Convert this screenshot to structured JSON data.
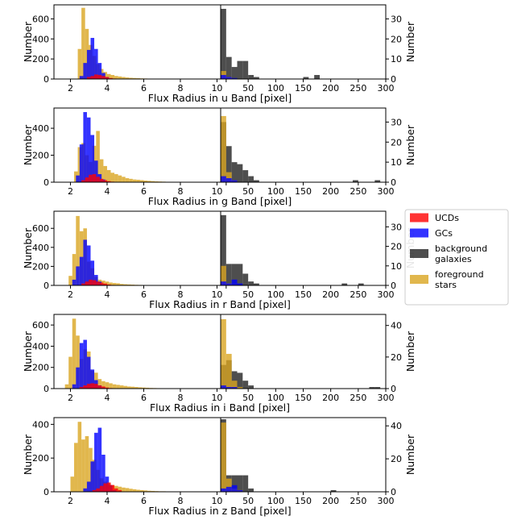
{
  "chart_data": {
    "type": "bar",
    "legend": {
      "placement": "right",
      "entries": [
        {
          "lines": [
            "UCDs"
          ],
          "color": "#ff0000"
        },
        {
          "lines": [
            "GCs"
          ],
          "color": "#0000ff"
        },
        {
          "lines": [
            "background",
            "galaxies"
          ],
          "color": "#222222"
        },
        {
          "lines": [
            "foreground",
            "stars"
          ],
          "color": "#daa520"
        }
      ]
    },
    "colors": {
      "ucds": "#ff0000",
      "gcs": "#0000ff",
      "background": "#222222",
      "foreground": "#daa520"
    },
    "grid": false,
    "panels": [
      {
        "band": "u",
        "xlabel": "Flux Radius in u Band [pixel]",
        "ylabel_left": "Number",
        "ylabel_right": "Number",
        "left": {
          "xlim": [
            1.1,
            10.2
          ],
          "xticks": [
            2,
            4,
            6,
            8,
            10
          ],
          "xticklabels": [
            "2",
            "4",
            "6",
            "8",
            "10"
          ],
          "ylim": [
            0,
            740
          ],
          "yticks": [
            0,
            200,
            400,
            600
          ],
          "bin_width": 0.2,
          "foreground": {
            "x0": 2.4,
            "values": [
              300,
              710,
              500,
              340,
              230,
              150,
              100,
              70,
              50,
              40,
              30,
              25,
              20,
              15,
              12,
              10,
              8,
              6,
              5,
              4,
              3,
              3,
              2,
              2
            ]
          },
          "gcs": {
            "x0": 2.5,
            "values": [
              30,
              160,
              290,
              410,
              300,
              160,
              60,
              20,
              5
            ]
          },
          "ucds": {
            "x0": 2.9,
            "values": [
              20,
              30,
              45,
              40,
              30,
              20,
              10,
              5
            ]
          }
        },
        "right": {
          "xlim": [
            0,
            300
          ],
          "xticks": [
            10,
            50,
            100,
            150,
            200,
            250,
            300
          ],
          "xticklabels": [
            "10",
            "50",
            "100",
            "150",
            "200",
            "250",
            "300"
          ],
          "ylim": [
            0,
            37
          ],
          "yticks": [
            0,
            10,
            20,
            30
          ],
          "bin_width": 10,
          "foreground": {
            "x0": 0,
            "values": [
              4,
              1
            ]
          },
          "background": {
            "x0": 0,
            "values": [
              35,
              11,
              6,
              9,
              9,
              2,
              1,
              0,
              0,
              0,
              0,
              0,
              0,
              0,
              0,
              1,
              0,
              2
            ]
          },
          "gcs": {
            "x0": 0,
            "values": [
              2,
              1,
              0.5
            ]
          }
        }
      },
      {
        "band": "g",
        "xlabel": "Flux Radius in g Band [pixel]",
        "ylabel_left": "Number",
        "ylabel_right": "Number",
        "left": {
          "xlim": [
            1.1,
            10.2
          ],
          "xticks": [
            2,
            4,
            6,
            8,
            10
          ],
          "xticklabels": [
            "2",
            "4",
            "6",
            "8",
            "10"
          ],
          "ylim": [
            0,
            550
          ],
          "yticks": [
            0,
            200,
            400
          ],
          "bin_width": 0.2,
          "foreground": {
            "x0": 2.2,
            "values": [
              80,
              260,
              290,
              200,
              150,
              270,
              380,
              170,
              120,
              90,
              70,
              60,
              50,
              40,
              30,
              25,
              20,
              18,
              15,
              12,
              10,
              8,
              6,
              5,
              4,
              3,
              3,
              2
            ]
          },
          "gcs": {
            "x0": 2.3,
            "values": [
              50,
              280,
              520,
              480,
              350,
              160,
              60,
              20,
              5
            ]
          },
          "ucds": {
            "x0": 2.6,
            "values": [
              15,
              35,
              55,
              60,
              40,
              25,
              15,
              8,
              4
            ]
          }
        },
        "right": {
          "xlim": [
            0,
            300
          ],
          "xticks": [
            10,
            50,
            100,
            150,
            200,
            250,
            300
          ],
          "xticklabels": [
            "10",
            "50",
            "100",
            "150",
            "200",
            "250",
            "300"
          ],
          "ylim": [
            0,
            37
          ],
          "yticks": [
            0,
            10,
            20,
            30
          ],
          "bin_width": 10,
          "foreground": {
            "x0": 0,
            "values": [
              33,
              5,
              1
            ]
          },
          "background": {
            "x0": 0,
            "values": [
              30,
              18,
              10,
              9,
              6,
              3,
              1,
              0,
              0,
              0,
              0,
              0,
              0,
              0,
              0,
              0,
              0,
              0,
              0,
              0,
              0,
              0,
              0,
              0,
              1,
              0,
              0,
              0,
              1
            ]
          },
          "gcs": {
            "x0": 0,
            "values": [
              3,
              2,
              1
            ]
          }
        }
      },
      {
        "band": "r",
        "xlabel": "Flux Radius in r Band [pixel]",
        "ylabel_left": "Number",
        "ylabel_right": "Number",
        "left": {
          "xlim": [
            1.1,
            10.2
          ],
          "xticks": [
            2,
            4,
            6,
            8,
            10
          ],
          "xticklabels": [
            "2",
            "4",
            "6",
            "8",
            "10"
          ],
          "ylim": [
            0,
            780
          ],
          "yticks": [
            0,
            200,
            400,
            600
          ],
          "bin_width": 0.2,
          "foreground": {
            "x0": 1.9,
            "values": [
              100,
              330,
              730,
              570,
              600,
              250,
              180,
              90,
              60,
              50,
              40,
              30,
              25,
              22,
              15,
              12,
              10,
              8,
              6,
              5,
              4,
              3,
              2,
              2
            ]
          },
          "gcs": {
            "x0": 2.1,
            "values": [
              60,
              200,
              300,
              480,
              420,
              260,
              110,
              40,
              10
            ]
          },
          "ucds": {
            "x0": 2.6,
            "values": [
              20,
              40,
              60,
              55,
              40,
              30,
              20,
              10,
              5
            ]
          }
        },
        "right": {
          "xlim": [
            0,
            300
          ],
          "xticks": [
            10,
            50,
            100,
            150,
            200,
            250,
            300
          ],
          "xticklabels": [
            "10",
            "50",
            "100",
            "150",
            "200",
            "250",
            "300"
          ],
          "ylim": [
            0,
            38
          ],
          "yticks": [
            0,
            10,
            20,
            30
          ],
          "bin_width": 10,
          "foreground": {
            "x0": 0,
            "values": [
              10,
              1,
              0.5
            ]
          },
          "background": {
            "x0": 0,
            "values": [
              36,
              11,
              11,
              11,
              6,
              2,
              1,
              0,
              0,
              0,
              0,
              0,
              0,
              0,
              0,
              0,
              0,
              0,
              0,
              0,
              0,
              0,
              1,
              0,
              0,
              1
            ]
          },
          "gcs": {
            "x0": 0,
            "values": [
              2,
              1,
              3,
              1
            ]
          }
        }
      },
      {
        "band": "i",
        "xlabel": "Flux Radius in i Band [pixel]",
        "ylabel_left": "Number",
        "ylabel_right": "Number",
        "left": {
          "xlim": [
            1.1,
            10.2
          ],
          "xticks": [
            2,
            4,
            6,
            8,
            10
          ],
          "xticklabels": [
            "2",
            "4",
            "6",
            "8",
            "10"
          ],
          "ylim": [
            0,
            700
          ],
          "yticks": [
            0,
            200,
            400,
            600
          ],
          "bin_width": 0.2,
          "foreground": {
            "x0": 1.7,
            "values": [
              40,
              300,
              660,
              500,
              280,
              370,
              350,
              170,
              150,
              90,
              70,
              60,
              50,
              40,
              35,
              30,
              25,
              20,
              18,
              15,
              12,
              10,
              8,
              6,
              5,
              4,
              3,
              3,
              2,
              2,
              2,
              1,
              1,
              1
            ]
          },
          "gcs": {
            "x0": 2.1,
            "values": [
              40,
              200,
              430,
              460,
              300,
              180,
              80,
              30,
              10
            ]
          },
          "ucds": {
            "x0": 2.5,
            "values": [
              15,
              30,
              45,
              50,
              45,
              30,
              20,
              10,
              5
            ]
          }
        },
        "right": {
          "xlim": [
            0,
            300
          ],
          "xticks": [
            10,
            50,
            100,
            150,
            200,
            250,
            300
          ],
          "xticklabels": [
            "10",
            "50",
            "100",
            "150",
            "200",
            "250",
            "300"
          ],
          "ylim": [
            0,
            47
          ],
          "yticks": [
            0,
            20,
            40
          ],
          "bin_width": 10,
          "foreground": {
            "x0": 0,
            "values": [
              44,
              22,
              5,
              1
            ]
          },
          "background": {
            "x0": 0,
            "values": [
              15,
              18,
              11,
              10,
              5,
              2,
              0,
              0,
              0,
              0,
              0,
              0,
              0,
              0,
              0,
              0,
              0,
              0,
              0,
              0,
              0,
              0,
              0,
              0,
              0,
              0,
              0,
              1,
              1
            ]
          },
          "gcs": {
            "x0": 0,
            "values": [
              2,
              1,
              1
            ]
          }
        }
      },
      {
        "band": "z",
        "xlabel": "Flux Radius in z Band [pixel]",
        "ylabel_left": "Number",
        "ylabel_right": "Number",
        "left": {
          "xlim": [
            1.1,
            10.2
          ],
          "xticks": [
            2,
            4,
            6,
            8,
            10
          ],
          "xticklabels": [
            "2",
            "4",
            "6",
            "8",
            "10"
          ],
          "ylim": [
            0,
            440
          ],
          "yticks": [
            0,
            200,
            400
          ],
          "bin_width": 0.2,
          "foreground": {
            "x0": 2.0,
            "values": [
              90,
              290,
              415,
              310,
              330,
              260,
              190,
              130,
              80,
              60,
              50,
              40,
              35,
              30,
              25,
              22,
              18,
              15,
              12,
              10,
              8,
              6,
              5,
              4,
              3,
              3,
              2,
              2,
              1,
              1,
              1
            ]
          },
          "gcs": {
            "x0": 2.7,
            "values": [
              20,
              60,
              180,
              350,
              380,
              220,
              90,
              40,
              10
            ]
          },
          "ucds": {
            "x0": 3.2,
            "values": [
              10,
              20,
              35,
              50,
              55,
              40,
              20,
              10
            ]
          }
        },
        "right": {
          "xlim": [
            0,
            300
          ],
          "xticks": [
            10,
            50,
            100,
            150,
            200,
            250,
            300
          ],
          "xticklabels": [
            "10",
            "50",
            "100",
            "150",
            "200",
            "250",
            "300"
          ],
          "ylim": [
            0,
            45
          ],
          "yticks": [
            0,
            20,
            40
          ],
          "bin_width": 10,
          "foreground": {
            "x0": 0,
            "values": [
              42,
              8,
              2,
              1
            ]
          },
          "background": {
            "x0": 0,
            "values": [
              44,
              10,
              10,
              10,
              10,
              2,
              0,
              0,
              0,
              0,
              0,
              0,
              0,
              0,
              0,
              0,
              0,
              0,
              0,
              0,
              1
            ]
          },
          "gcs": {
            "x0": 0,
            "values": [
              2,
              3,
              4,
              1
            ]
          }
        }
      }
    ]
  }
}
